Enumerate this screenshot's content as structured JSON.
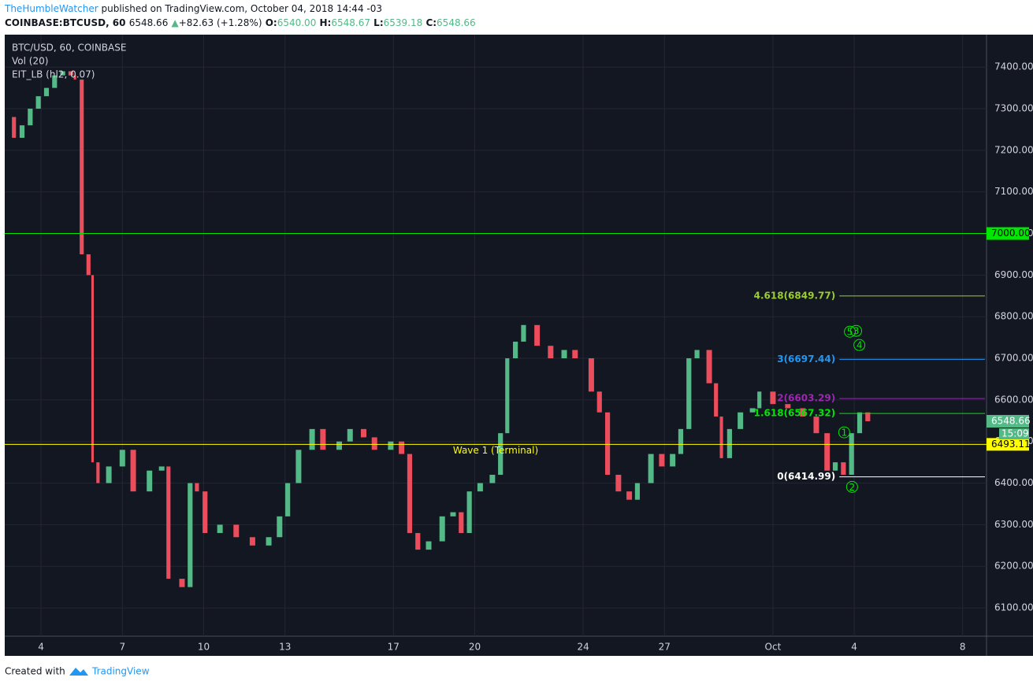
{
  "header": {
    "author": "TheHumbleWatcher",
    "published": "published on TradingView.com, October 04, 2018 14:44 -03",
    "symbol": "COINBASE:BTCUSD, 60",
    "price": "6548.66",
    "arrow": "▲",
    "change": "+82.63 (+1.28%)",
    "o_label": "O:",
    "o": "6540.00",
    "h_label": "H:",
    "h": "6548.67",
    "l_label": "L:",
    "l": "6539.18",
    "c_label": "C:",
    "c": "6548.66"
  },
  "legend": [
    "BTC/USD, 60, COINBASE",
    "Vol (20)",
    "EIT_LB (hl2, 0.07)"
  ],
  "footer": {
    "text": "Created with",
    "brand": "TradingView"
  },
  "chart_data": {
    "type": "candlestick",
    "x": [
      2.75,
      3.0,
      3.3,
      3.6,
      3.9,
      4.2,
      4.5,
      4.8,
      5.1,
      5.25,
      5.5,
      5.75,
      5.9,
      6.1,
      6.5,
      7.0,
      7.4,
      8.0,
      8.45,
      8.7,
      9.2,
      9.5,
      9.75,
      10.05,
      10.6,
      11.2,
      11.8,
      12.4,
      12.8,
      13.1,
      13.5,
      14.0,
      14.4,
      15.0,
      15.4,
      15.9,
      16.3,
      16.9,
      17.3,
      17.6,
      17.9,
      18.3,
      18.8,
      19.2,
      19.5,
      19.8,
      20.2,
      20.65,
      20.95,
      21.2,
      21.5,
      21.8,
      22.3,
      22.8,
      23.3,
      23.7,
      24.3,
      24.6,
      24.9,
      25.3,
      25.7,
      26.0,
      26.5,
      26.9,
      27.3,
      27.6,
      27.9,
      28.2,
      28.65,
      28.9,
      29.1,
      29.4,
      29.8,
      30.25,
      30.5,
      31.0,
      31.55,
      32.1,
      32.6,
      33.0,
      33.3,
      33.6,
      33.9,
      34.2,
      34.5
    ],
    "values": [
      7280,
      7230,
      7260,
      7300,
      7330,
      7350,
      7380,
      7390,
      7380,
      7370,
      6950,
      6900,
      6450,
      6400,
      6440,
      6480,
      6380,
      6430,
      6440,
      6170,
      6150,
      6400,
      6380,
      6280,
      6300,
      6270,
      6250,
      6270,
      6320,
      6400,
      6480,
      6530,
      6480,
      6500,
      6530,
      6510,
      6480,
      6500,
      6470,
      6280,
      6240,
      6260,
      6320,
      6330,
      6280,
      6380,
      6400,
      6420,
      6520,
      6700,
      6740,
      6780,
      6730,
      6700,
      6720,
      6700,
      6620,
      6570,
      6420,
      6380,
      6360,
      6400,
      6470,
      6440,
      6470,
      6530,
      6700,
      6720,
      6640,
      6560,
      6460,
      6530,
      6570,
      6580,
      6620,
      6590,
      6580,
      6560,
      6520,
      6430,
      6450,
      6420,
      6520,
      6570,
      6548.66
    ],
    "up_color": "#53b987",
    "down_color": "#eb4d5c",
    "xlim": [
      2.66,
      38.88
    ],
    "xticks": [
      4,
      7,
      10,
      13,
      17,
      20,
      24,
      27,
      {
        "value": 31,
        "label": "Oct"
      },
      {
        "value": 34,
        "label": "4"
      },
      {
        "value": 38,
        "label": "8"
      }
    ],
    "ylim": [
      6032,
      7478
    ],
    "yticks": [
      {
        "value": 6100,
        "label": "6100.00"
      },
      {
        "value": 6200,
        "label": "6200.00"
      },
      {
        "value": 6300,
        "label": "6300.00"
      },
      {
        "value": 6400,
        "label": "6400.00"
      },
      {
        "value": 6500,
        "label": "6500.00"
      },
      {
        "value": 6600,
        "label": "6600.00"
      },
      {
        "value": 6700,
        "label": "6700.00"
      },
      {
        "value": 6800,
        "label": "6800.00"
      },
      {
        "value": 6900,
        "label": "6900.00"
      },
      {
        "value": 7000,
        "label": "7000.00"
      },
      {
        "value": 7100,
        "label": "7100.00"
      },
      {
        "value": 7200,
        "label": "7200.00"
      },
      {
        "value": 7300,
        "label": "7300.00"
      },
      {
        "value": 7400,
        "label": "7400.00"
      }
    ],
    "grid": true,
    "levels": [
      {
        "value": 7000,
        "color": "#00e600",
        "axis_label": "7000.00"
      },
      {
        "value": 6493.11,
        "color": "#ffff00",
        "axis_label": "6493.11",
        "label": "Wave 1 (Terminal)"
      }
    ],
    "fib_start": 33.45,
    "fib_levels": [
      {
        "value": 6849.77,
        "label": "4.618(6849.77)",
        "color": "#9acd32"
      },
      {
        "value": 6697.44,
        "label": "3(6697.44)",
        "color": "#2196f3"
      },
      {
        "value": 6603.29,
        "label": "2(6603.29)",
        "color": "#9c27b0"
      },
      {
        "value": 6567.32,
        "label": "1.618(6567.32)",
        "color": "#00e600"
      },
      {
        "value": 6414.99,
        "label": "0(6414.99)",
        "color": "#ffffff"
      }
    ],
    "wave_labels": [
      {
        "label": "1",
        "x": 33.63,
        "y": 6522
      },
      {
        "label": "2",
        "x": 33.92,
        "y": 6391
      },
      {
        "label": "3",
        "x": 34.07,
        "y": 6766
      },
      {
        "label": "4",
        "x": 34.19,
        "y": 6732
      },
      {
        "label": "5",
        "x": 33.84,
        "y": 6764
      }
    ],
    "last_price": {
      "value": 6548.66,
      "countdown": "15:09"
    }
  }
}
